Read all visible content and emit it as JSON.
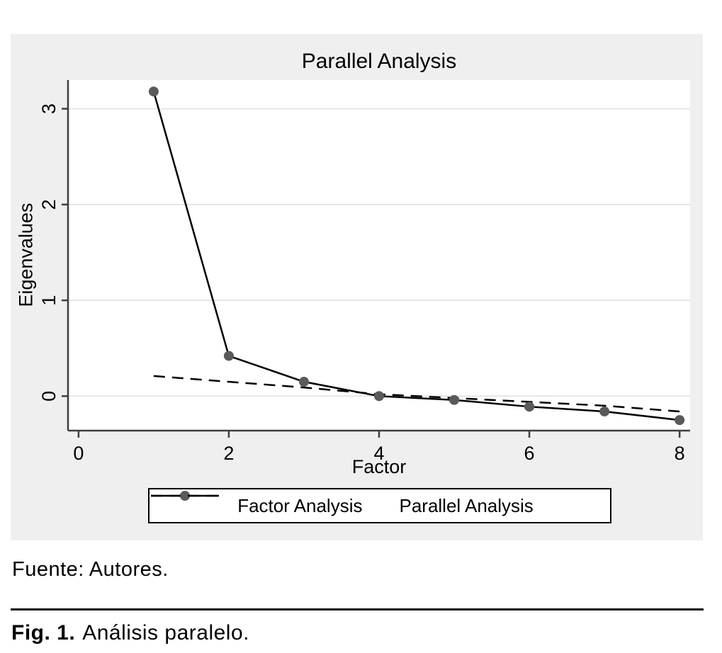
{
  "figure": {
    "title": "Parallel Analysis",
    "xlabel": "Factor",
    "ylabel": "Eigenvalues",
    "legend": [
      {
        "label": "Factor Analysis",
        "style": "solid-line-with-marker"
      },
      {
        "label": "Parallel Analysis",
        "style": "dashed-line"
      }
    ]
  },
  "chart_data": {
    "type": "line",
    "title": "Parallel Analysis",
    "xlabel": "Factor",
    "ylabel": "Eigenvalues",
    "x": [
      1,
      2,
      3,
      4,
      5,
      6,
      7,
      8
    ],
    "series": [
      {
        "name": "Factor Analysis",
        "values": [
          3.18,
          0.42,
          0.15,
          0.0,
          -0.04,
          -0.11,
          -0.16,
          -0.25
        ],
        "style": "solid",
        "marker": "circle",
        "color": "#000000",
        "marker_color": "#5a5a5a"
      },
      {
        "name": "Parallel Analysis",
        "values": [
          0.21,
          0.15,
          0.09,
          0.02,
          -0.02,
          -0.06,
          -0.1,
          -0.16
        ],
        "style": "dashed",
        "marker": "none",
        "color": "#000000"
      }
    ],
    "x_ticks": [
      0,
      2,
      4,
      6,
      8
    ],
    "y_ticks": [
      0,
      1,
      2,
      3
    ],
    "xlim": [
      -0.14,
      8.14
    ],
    "ylim": [
      -0.36,
      3.3
    ],
    "grid": "horizontal-y-gridlines",
    "legend_position": "bottom"
  },
  "caption": {
    "source": "Fuente: Autores.",
    "fig_label": "Fig. 1.",
    "fig_text": "Análisis paralelo."
  },
  "colors": {
    "panel_bg": "#efefef",
    "plot_bg": "#ffffff",
    "gridline": "#e6e6e6",
    "axis": "#3f3f3f",
    "line": "#000000",
    "marker": "#5a5a5a",
    "text": "#000000"
  }
}
